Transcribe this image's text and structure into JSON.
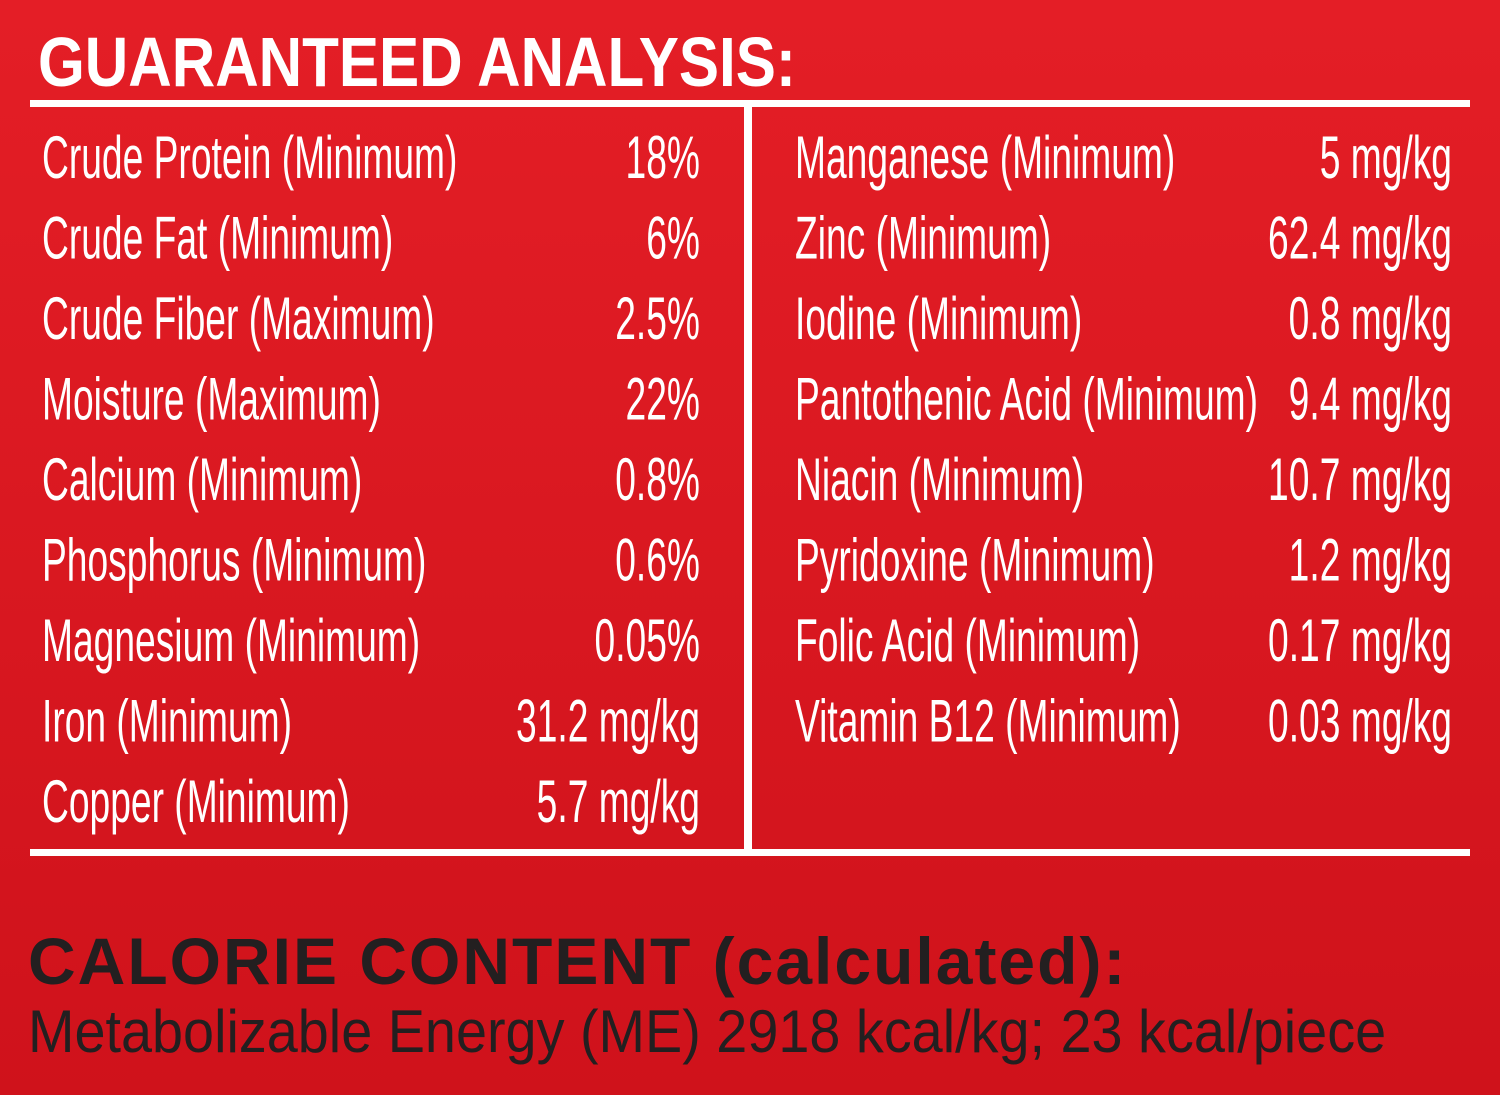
{
  "header": {
    "title": "GUARANTEED ANALYSIS:"
  },
  "table": {
    "left": [
      [
        "Crude Protein (Minimum)",
        "18%"
      ],
      [
        "Crude Fat (Minimum)",
        "6%"
      ],
      [
        "Crude Fiber (Maximum)",
        "2.5%"
      ],
      [
        "Moisture (Maximum)",
        "22%"
      ],
      [
        "Calcium (Minimum)",
        "0.8%"
      ],
      [
        "Phosphorus (Minimum)",
        "0.6%"
      ],
      [
        "Magnesium (Minimum)",
        "0.05%"
      ],
      [
        "Iron (Minimum)",
        "31.2 mg/kg"
      ],
      [
        "Copper (Minimum)",
        "5.7 mg/kg"
      ]
    ],
    "right": [
      [
        "Manganese (Minimum)",
        "5 mg/kg"
      ],
      [
        "Zinc (Minimum)",
        "62.4 mg/kg"
      ],
      [
        "Iodine (Minimum)",
        "0.8 mg/kg"
      ],
      [
        "Pantothenic Acid (Minimum)",
        "9.4 mg/kg"
      ],
      [
        "Niacin (Minimum)",
        "10.7 mg/kg"
      ],
      [
        "Pyridoxine (Minimum)",
        "1.2 mg/kg"
      ],
      [
        "Folic Acid (Minimum)",
        "0.17 mg/kg"
      ],
      [
        "Vitamin B12 (Minimum)",
        "0.03 mg/kg"
      ]
    ]
  },
  "calorie": {
    "title": "CALORIE CONTENT (calculated):",
    "text": "Metabolizable Energy (ME) 2918 kcal/kg; 23 kcal/piece"
  }
}
